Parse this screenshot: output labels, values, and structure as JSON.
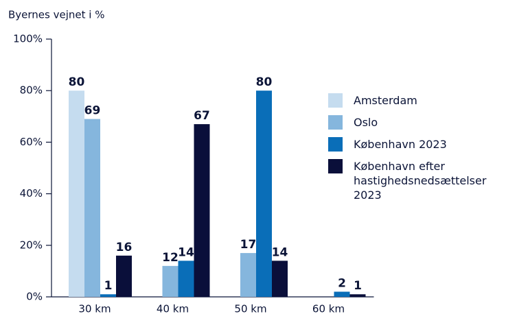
{
  "chart_data": {
    "type": "bar",
    "ylabel": "Byernes vejnet i %",
    "categories": [
      "30 km",
      "40 km",
      "50 km",
      "60 km"
    ],
    "series": [
      {
        "name": "Amsterdam",
        "color": "#c5dcef",
        "values": [
          80,
          null,
          null,
          null
        ]
      },
      {
        "name": "Oslo",
        "color": "#85b6dd",
        "values": [
          69,
          12,
          17,
          null
        ]
      },
      {
        "name": "København 2023",
        "color": "#0a6eb8",
        "values": [
          1,
          14,
          80,
          2
        ]
      },
      {
        "name": "København efter hastighedsnedsættelser 2023",
        "color": "#0a0f3a",
        "values": [
          16,
          67,
          14,
          1
        ]
      }
    ],
    "ylim": [
      0,
      100
    ],
    "yticks": [
      {
        "value": 0,
        "label": "0%"
      },
      {
        "value": 20,
        "label": "20%"
      },
      {
        "value": 40,
        "label": "40%"
      },
      {
        "value": 60,
        "label": "60%"
      },
      {
        "value": 80,
        "label": "80%"
      },
      {
        "value": 100,
        "label": "100%"
      }
    ],
    "legend": "right"
  }
}
